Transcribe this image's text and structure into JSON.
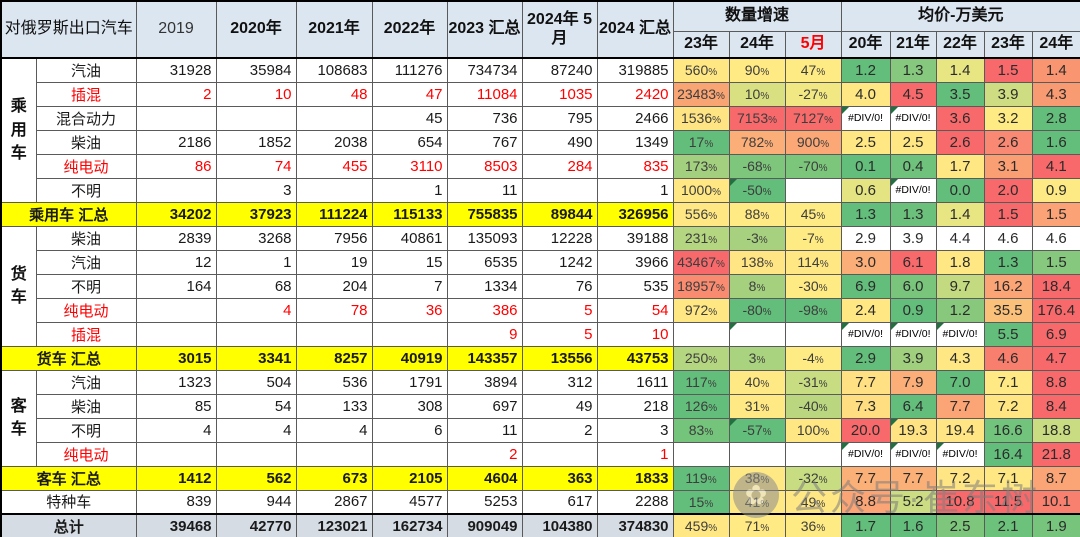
{
  "table": {
    "title": "对俄罗斯出口汽车",
    "qty_headers": [
      "2019",
      "2020年",
      "2021年",
      "2022年",
      "2023 汇总",
      "2024年 5月",
      "2024 汇总"
    ],
    "growth_group_label": "数量增速",
    "growth_subheaders": [
      "23年",
      "24年",
      "5月"
    ],
    "price_group_label": "均价-万美元",
    "price_subheaders": [
      "20年",
      "21年",
      "22年",
      "23年",
      "24年"
    ],
    "palette": {
      "low_green": "#63BE7B",
      "mid_yellow": "#FFEB84",
      "high_red": "#F8696B",
      "header_blue": "#DCE6F1",
      "summary_yellow": "#FFFF00",
      "total_blue": "#D6DCE4",
      "error_indicator_green": "#217140"
    },
    "rows": [
      {
        "kind": "data",
        "group": "乘用车",
        "gspan": 6,
        "label": "汽油",
        "red": false,
        "qty": [
          "31928",
          "35984",
          "108683",
          "111276",
          "734734",
          "87240",
          "319885"
        ],
        "growth": [
          [
            "560%",
            "#FFE884"
          ],
          [
            "90%",
            "#FFEA84"
          ],
          [
            "47%",
            "#FFEB84"
          ]
        ],
        "price": [
          [
            "1.2",
            "#63BE7B"
          ],
          [
            "1.3",
            "#86C87D"
          ],
          [
            "1.4",
            "#E8E583"
          ],
          [
            "1.5",
            "#F8696B"
          ],
          [
            "1.4",
            "#F99570"
          ]
        ]
      },
      {
        "kind": "data",
        "label": "插混",
        "red": true,
        "qty": [
          "2",
          "10",
          "48",
          "47",
          "11084",
          "1035",
          "2420"
        ],
        "growth": [
          [
            "23483%",
            "#F9A473"
          ],
          [
            "10%",
            "#D9E082"
          ],
          [
            "-27%",
            "#F2E883"
          ]
        ],
        "price": [
          [
            "4.0",
            "#FFE883"
          ],
          [
            "4.5",
            "#F8696B"
          ],
          [
            "3.5",
            "#63BE7B"
          ],
          [
            "3.9",
            "#CEDD82"
          ],
          [
            "4.3",
            "#F99B72"
          ]
        ]
      },
      {
        "kind": "data",
        "label": "混合动力",
        "red": false,
        "qty": [
          "",
          "",
          "",
          "45",
          "736",
          "795",
          "2466"
        ],
        "growth": [
          [
            "1536%",
            "#FFE483"
          ],
          [
            "7153%",
            "#F8696B"
          ],
          [
            "7127%",
            "#F86B6B"
          ]
        ],
        "price": [
          [
            "#DIV/0!",
            "",
            1
          ],
          [
            "#DIV/0!",
            "",
            1
          ],
          [
            "3.6",
            "#F8696B"
          ],
          [
            "3.2",
            "#FFEB84"
          ],
          [
            "2.8",
            "#63BE7B"
          ]
        ]
      },
      {
        "kind": "data",
        "label": "柴油",
        "red": false,
        "qty": [
          "2186",
          "1852",
          "2038",
          "654",
          "767",
          "490",
          "1349"
        ],
        "growth": [
          [
            "17%",
            "#63BE7B"
          ],
          [
            "782%",
            "#FCAE78"
          ],
          [
            "900%",
            "#FCA776"
          ]
        ],
        "price": [
          [
            "2.5",
            "#FFE884"
          ],
          [
            "2.5",
            "#FFE884"
          ],
          [
            "2.6",
            "#F8696B"
          ],
          [
            "2.6",
            "#F98972"
          ],
          [
            "1.6",
            "#63BE7B"
          ]
        ]
      },
      {
        "kind": "data",
        "label": "纯电动",
        "red": true,
        "qty": [
          "86",
          "74",
          "455",
          "3110",
          "8503",
          "284",
          "835"
        ],
        "growth": [
          [
            "173%",
            "#A3D07F"
          ],
          [
            "-68%",
            "#7FC67D"
          ],
          [
            "-70%",
            "#7CC67C"
          ]
        ],
        "price": [
          [
            "0.1",
            "#63BE7B"
          ],
          [
            "0.4",
            "#6FC27C"
          ],
          [
            "1.7",
            "#FFE884"
          ],
          [
            "3.1",
            "#FA9E74"
          ],
          [
            "4.1",
            "#F8696B"
          ]
        ]
      },
      {
        "kind": "data",
        "label": "不明",
        "red": false,
        "qty": [
          "",
          "3",
          "",
          "1",
          "11",
          "",
          "1"
        ],
        "growth": [
          [
            "1000%",
            "#FFE884"
          ],
          [
            "-50%",
            "#63BE7B",
            1
          ],
          [
            "",
            ""
          ]
        ],
        "price": [
          [
            "0.6",
            "#E5E483"
          ],
          [
            "#DIV/0!",
            "",
            1
          ],
          [
            "0.0",
            "#63BE7B"
          ],
          [
            "2.0",
            "#F8696B"
          ],
          [
            "0.9",
            "#FDEA84"
          ]
        ]
      },
      {
        "kind": "summary",
        "label": "乘用车 汇总",
        "qty": [
          "34202",
          "37923",
          "111224",
          "115133",
          "755835",
          "89844",
          "326956"
        ],
        "growth": [
          [
            "556%",
            "#FFE884"
          ],
          [
            "88%",
            "#FFEA84"
          ],
          [
            "45%",
            "#FFEB84"
          ]
        ],
        "price": [
          [
            "1.3",
            "#63BE7B"
          ],
          [
            "1.3",
            "#6BC17B"
          ],
          [
            "1.4",
            "#E8E583"
          ],
          [
            "1.5",
            "#F8696B"
          ],
          [
            "1.5",
            "#FBA376"
          ]
        ]
      },
      {
        "kind": "data",
        "group": "货车",
        "gspan": 5,
        "label": "柴油",
        "red": false,
        "qty": [
          "2839",
          "3268",
          "7956",
          "40861",
          "135093",
          "12228",
          "39188"
        ],
        "growth": [
          [
            "231%",
            "#B5D680"
          ],
          [
            "-3%",
            "#A7D17F"
          ],
          [
            "-7%",
            "#FFEB84"
          ]
        ],
        "price": [
          [
            "2.9",
            ""
          ],
          [
            "3.9",
            ""
          ],
          [
            "4.4",
            ""
          ],
          [
            "4.6",
            ""
          ],
          [
            "4.6",
            ""
          ]
        ]
      },
      {
        "kind": "data",
        "label": "汽油",
        "red": false,
        "qty": [
          "12",
          "1",
          "19",
          "15",
          "6535",
          "1242",
          "3966"
        ],
        "growth": [
          [
            "43467%",
            "#F8696B"
          ],
          [
            "138%",
            "#FFE583"
          ],
          [
            "114%",
            "#FFE884"
          ]
        ],
        "price": [
          [
            "3.0",
            "#FBAE78"
          ],
          [
            "6.1",
            "#F8696B"
          ],
          [
            "1.8",
            "#FFE884"
          ],
          [
            "1.3",
            "#63BE7B"
          ],
          [
            "1.5",
            "#86C87D"
          ]
        ]
      },
      {
        "kind": "data",
        "label": "不明",
        "red": false,
        "qty": [
          "164",
          "68",
          "204",
          "7",
          "1334",
          "76",
          "535"
        ],
        "growth": [
          [
            "18957%",
            "#F98B70"
          ],
          [
            "8%",
            "#A5D17F"
          ],
          [
            "-30%",
            "#FFEB84"
          ]
        ],
        "price": [
          [
            "6.9",
            "#63BE7B"
          ],
          [
            "6.0",
            "#79C57C"
          ],
          [
            "9.7",
            "#C3DA81"
          ],
          [
            "16.2",
            "#FBA476"
          ],
          [
            "18.4",
            "#F8696B"
          ]
        ]
      },
      {
        "kind": "data",
        "label": "纯电动",
        "red": true,
        "qty": [
          "",
          "4",
          "78",
          "36",
          "386",
          "5",
          "54"
        ],
        "growth": [
          [
            "972%",
            "#FFE884"
          ],
          [
            "-80%",
            "#63BE7B"
          ],
          [
            "-98%",
            "#63BE7B"
          ]
        ],
        "price": [
          [
            "2.4",
            "#FFE884"
          ],
          [
            "0.9",
            "#63BE7B"
          ],
          [
            "1.2",
            "#87C87D"
          ],
          [
            "35.5",
            "#FBC17B"
          ],
          [
            "176.4",
            "#F8696B"
          ]
        ]
      },
      {
        "kind": "data",
        "label": "插混",
        "red": true,
        "qty": [
          "",
          "",
          "",
          "",
          "9",
          "5",
          "10"
        ],
        "growth": [
          [
            "",
            ""
          ],
          [
            "",
            "",
            1
          ],
          [
            "",
            ""
          ]
        ],
        "price": [
          [
            "#DIV/0!",
            "",
            1
          ],
          [
            "#DIV/0!",
            "",
            1
          ],
          [
            "#DIV/0!",
            "",
            1
          ],
          [
            "5.5",
            "#63BE7B"
          ],
          [
            "6.9",
            "#F8696B"
          ]
        ]
      },
      {
        "kind": "summary",
        "label": "货车 汇总",
        "qty": [
          "3015",
          "3341",
          "8257",
          "40919",
          "143357",
          "13556",
          "43753"
        ],
        "growth": [
          [
            "250%",
            "#B5D680"
          ],
          [
            "3%",
            "#AAD37F"
          ],
          [
            "-4%",
            "#FFEB84"
          ]
        ],
        "price": [
          [
            "2.9",
            "#63BE7B"
          ],
          [
            "3.9",
            "#A0CF7E"
          ],
          [
            "4.3",
            "#FFE884"
          ],
          [
            "4.6",
            "#F87E6D"
          ],
          [
            "4.7",
            "#F8696B"
          ]
        ]
      },
      {
        "kind": "data",
        "group": "客车",
        "gspan": 4,
        "label": "汽油",
        "red": false,
        "qty": [
          "1323",
          "504",
          "536",
          "1791",
          "3894",
          "312",
          "1611"
        ],
        "growth": [
          [
            "117%",
            "#63BE7B"
          ],
          [
            "40%",
            "#FFE984"
          ],
          [
            "-31%",
            "#C8DC82"
          ]
        ],
        "price": [
          [
            "7.7",
            "#FFE183"
          ],
          [
            "7.9",
            "#FBAE78"
          ],
          [
            "7.0",
            "#63BE7B"
          ],
          [
            "7.1",
            "#FFE984"
          ],
          [
            "8.8",
            "#F8696B"
          ]
        ]
      },
      {
        "kind": "data",
        "label": "柴油",
        "red": false,
        "qty": [
          "85",
          "54",
          "133",
          "308",
          "697",
          "49",
          "218"
        ],
        "growth": [
          [
            "126%",
            "#63BE7B"
          ],
          [
            "31%",
            "#FFE984"
          ],
          [
            "-40%",
            "#BAD780"
          ]
        ],
        "price": [
          [
            "7.3",
            "#FFDE82"
          ],
          [
            "6.4",
            "#63BE7B"
          ],
          [
            "7.7",
            "#FBA576"
          ],
          [
            "7.2",
            "#FFE683"
          ],
          [
            "8.4",
            "#F8696B"
          ]
        ]
      },
      {
        "kind": "data",
        "label": "不明",
        "red": false,
        "qty": [
          "4",
          "4",
          "4",
          "6",
          "11",
          "2",
          "3"
        ],
        "growth": [
          [
            "83%",
            "#74C47C"
          ],
          [
            "-57%",
            "#63BE7B",
            1
          ],
          [
            "100%",
            "#FFE884"
          ]
        ],
        "price": [
          [
            "20.0",
            "#F8696B"
          ],
          [
            "19.3",
            "#FFE383",
            1
          ],
          [
            "19.4",
            "#FFE583"
          ],
          [
            "16.6",
            "#72C37C"
          ],
          [
            "18.8",
            "#C9DC82"
          ]
        ]
      },
      {
        "kind": "data",
        "label": "纯电动",
        "red": true,
        "qty": [
          "",
          "",
          "",
          "",
          "2",
          "",
          "1"
        ],
        "growth": [
          [
            "",
            ""
          ],
          [
            "",
            ""
          ],
          [
            "",
            ""
          ]
        ],
        "price": [
          [
            "#DIV/0!",
            "",
            1
          ],
          [
            "#DIV/0!",
            "",
            1
          ],
          [
            "#DIV/0!",
            "",
            1
          ],
          [
            "16.4",
            "#63BE7B"
          ],
          [
            "21.8",
            "#F8696B"
          ]
        ]
      },
      {
        "kind": "summary",
        "label": "客车 汇总",
        "qty": [
          "1412",
          "562",
          "673",
          "2105",
          "4604",
          "363",
          "1833"
        ],
        "growth": [
          [
            "119%",
            "#63BE7B"
          ],
          [
            "38%",
            "#FFE984"
          ],
          [
            "-32%",
            "#C8DC82"
          ]
        ],
        "price": [
          [
            "7.7",
            "#FBB078"
          ],
          [
            "7.7",
            "#FBB078"
          ],
          [
            "7.2",
            "#FFE583"
          ],
          [
            "7.1",
            "#FFE783"
          ],
          [
            "8.7",
            "#FBA576"
          ]
        ]
      },
      {
        "kind": "special",
        "label": "特种车",
        "qty": [
          "839",
          "944",
          "2867",
          "4577",
          "5253",
          "617",
          "2288"
        ],
        "growth": [
          [
            "15%",
            "#63BE7B"
          ],
          [
            "41%",
            "#FFE984"
          ],
          [
            "49%",
            "#FFE884"
          ]
        ],
        "price": [
          [
            "8.8",
            "#FBA476"
          ],
          [
            "5.2",
            "#CBDC82"
          ],
          [
            "10.8",
            "#F8696B"
          ],
          [
            "11.5",
            "#F8696B"
          ],
          [
            "10.1",
            "#F8806E"
          ]
        ]
      },
      {
        "kind": "total",
        "label": "总计",
        "qty": [
          "39468",
          "42770",
          "123021",
          "162734",
          "909049",
          "104380",
          "374830"
        ],
        "growth": [
          [
            "459%",
            "#FFE884"
          ],
          [
            "71%",
            "#FFEA84"
          ],
          [
            "36%",
            "#FFEB84"
          ]
        ],
        "price": [
          [
            "1.7",
            "#63BE7B"
          ],
          [
            "1.6",
            "#63BE7B"
          ],
          [
            "2.5",
            "#7DC67C"
          ],
          [
            "2.1",
            "#6DC27B"
          ],
          [
            "1.9",
            "#77C57C"
          ]
        ]
      }
    ]
  },
  "watermark": {
    "text": "公众号·崔东树",
    "icon_glyph": "✿"
  }
}
